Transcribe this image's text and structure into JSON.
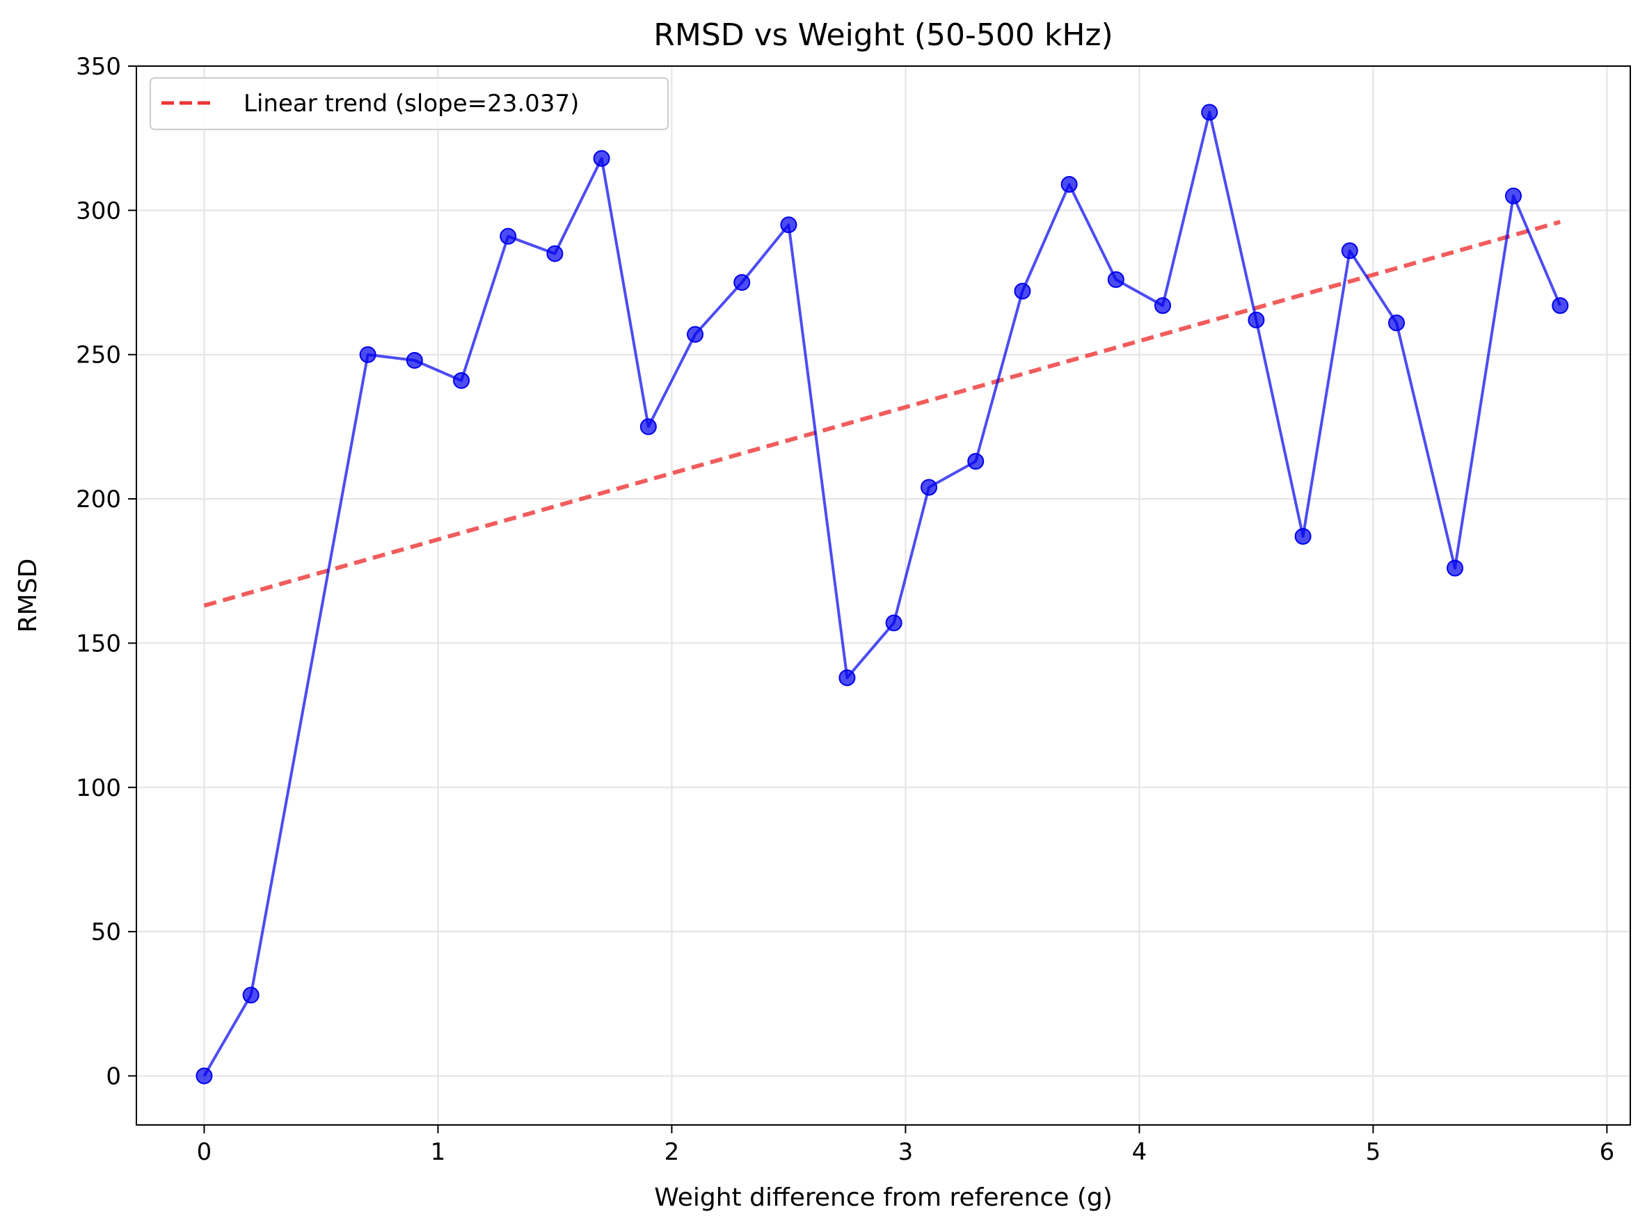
{
  "chart_data": {
    "type": "line",
    "title": "RMSD vs Weight (50-500 kHz)",
    "xlabel": "Weight difference from reference (g)",
    "ylabel": "RMSD",
    "xlim": [
      -0.29,
      6.1
    ],
    "ylim": [
      -17,
      350
    ],
    "xticks": [
      0,
      1,
      2,
      3,
      4,
      5,
      6
    ],
    "yticks": [
      0,
      50,
      100,
      150,
      200,
      250,
      300,
      350
    ],
    "grid": true,
    "legend_position": "top-left",
    "series": [
      {
        "type": "line-markers",
        "color": "#0000ee",
        "x": [
          0,
          0.2,
          0.7,
          0.9,
          1.1,
          1.3,
          1.5,
          1.7,
          1.9,
          2.1,
          2.3,
          2.5,
          2.75,
          2.95,
          3.1,
          3.3,
          3.5,
          3.7,
          3.9,
          4.1,
          4.3,
          4.5,
          4.7,
          4.9,
          5.1,
          5.35,
          5.6,
          5.8
        ],
        "y": [
          0,
          28,
          250,
          248,
          241,
          291,
          285,
          318,
          225,
          257,
          275,
          295,
          138,
          157,
          204,
          213,
          272,
          309,
          276,
          267,
          334,
          262,
          187,
          286,
          261,
          176,
          305,
          267
        ]
      },
      {
        "type": "trend",
        "name": "Linear trend (slope=23.037)",
        "color": "#ee3333",
        "dashed": true,
        "x": [
          0,
          5.8
        ],
        "y": [
          163,
          296
        ]
      }
    ]
  }
}
